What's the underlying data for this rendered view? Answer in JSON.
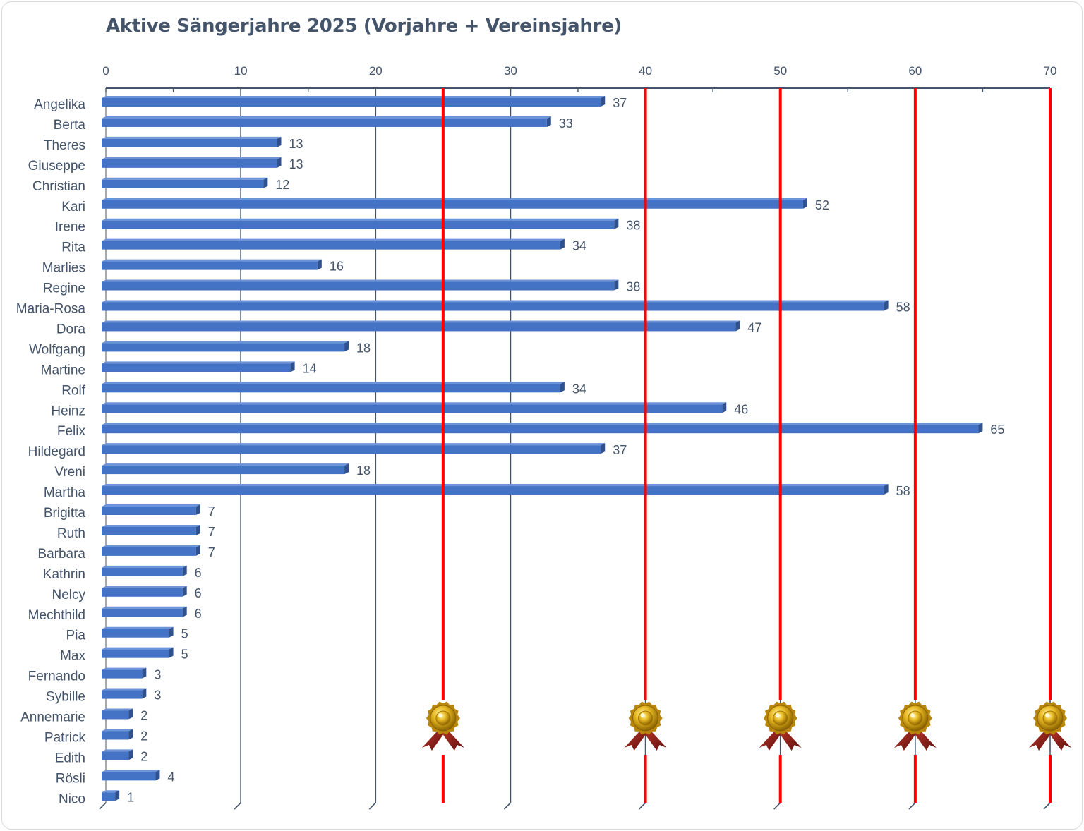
{
  "colors": {
    "bar": "#4472c4",
    "bar_dark": "#2f528f",
    "bar_light": "#6d93d8",
    "grid": "#44546a",
    "text": "#44546a",
    "marker": "#ff0000",
    "medal_gold": "#d4a017",
    "ribbon": "#8b1a1a"
  },
  "chart_data": {
    "type": "bar",
    "orientation": "horizontal",
    "title": "Aktive Sängerjahre 2025 (Vorjahre + Vereinsjahre)",
    "xlim": [
      0,
      70
    ],
    "xticks": [
      0,
      10,
      20,
      30,
      40,
      50,
      60,
      70
    ],
    "grid": true,
    "categories": [
      "Angelika",
      "Berta",
      "Theres",
      "Giuseppe",
      "Christian",
      "Kari",
      "Irene",
      "Rita",
      "Marlies",
      "Regine",
      "Maria-Rosa",
      "Dora",
      "Wolfgang",
      "Martine",
      "Rolf",
      "Heinz",
      "Felix",
      "Hildegard",
      "Vreni",
      "Martha",
      "Brigitta",
      "Ruth",
      "Barbara",
      "Kathrin",
      "Nelcy",
      "Mechthild",
      "Pia",
      "Max",
      "Fernando",
      "Sybille",
      "Annemarie",
      "Patrick",
      "Edith",
      "Rösli",
      "Nico"
    ],
    "values": [
      37,
      33,
      13,
      13,
      12,
      52,
      38,
      34,
      16,
      38,
      58,
      47,
      18,
      14,
      34,
      46,
      65,
      37,
      18,
      58,
      7,
      7,
      7,
      6,
      6,
      6,
      5,
      5,
      3,
      3,
      2,
      2,
      2,
      4,
      1
    ],
    "milestones": [
      25,
      40,
      50,
      60,
      70
    ],
    "milestone_icon": "award-medal-icon"
  }
}
